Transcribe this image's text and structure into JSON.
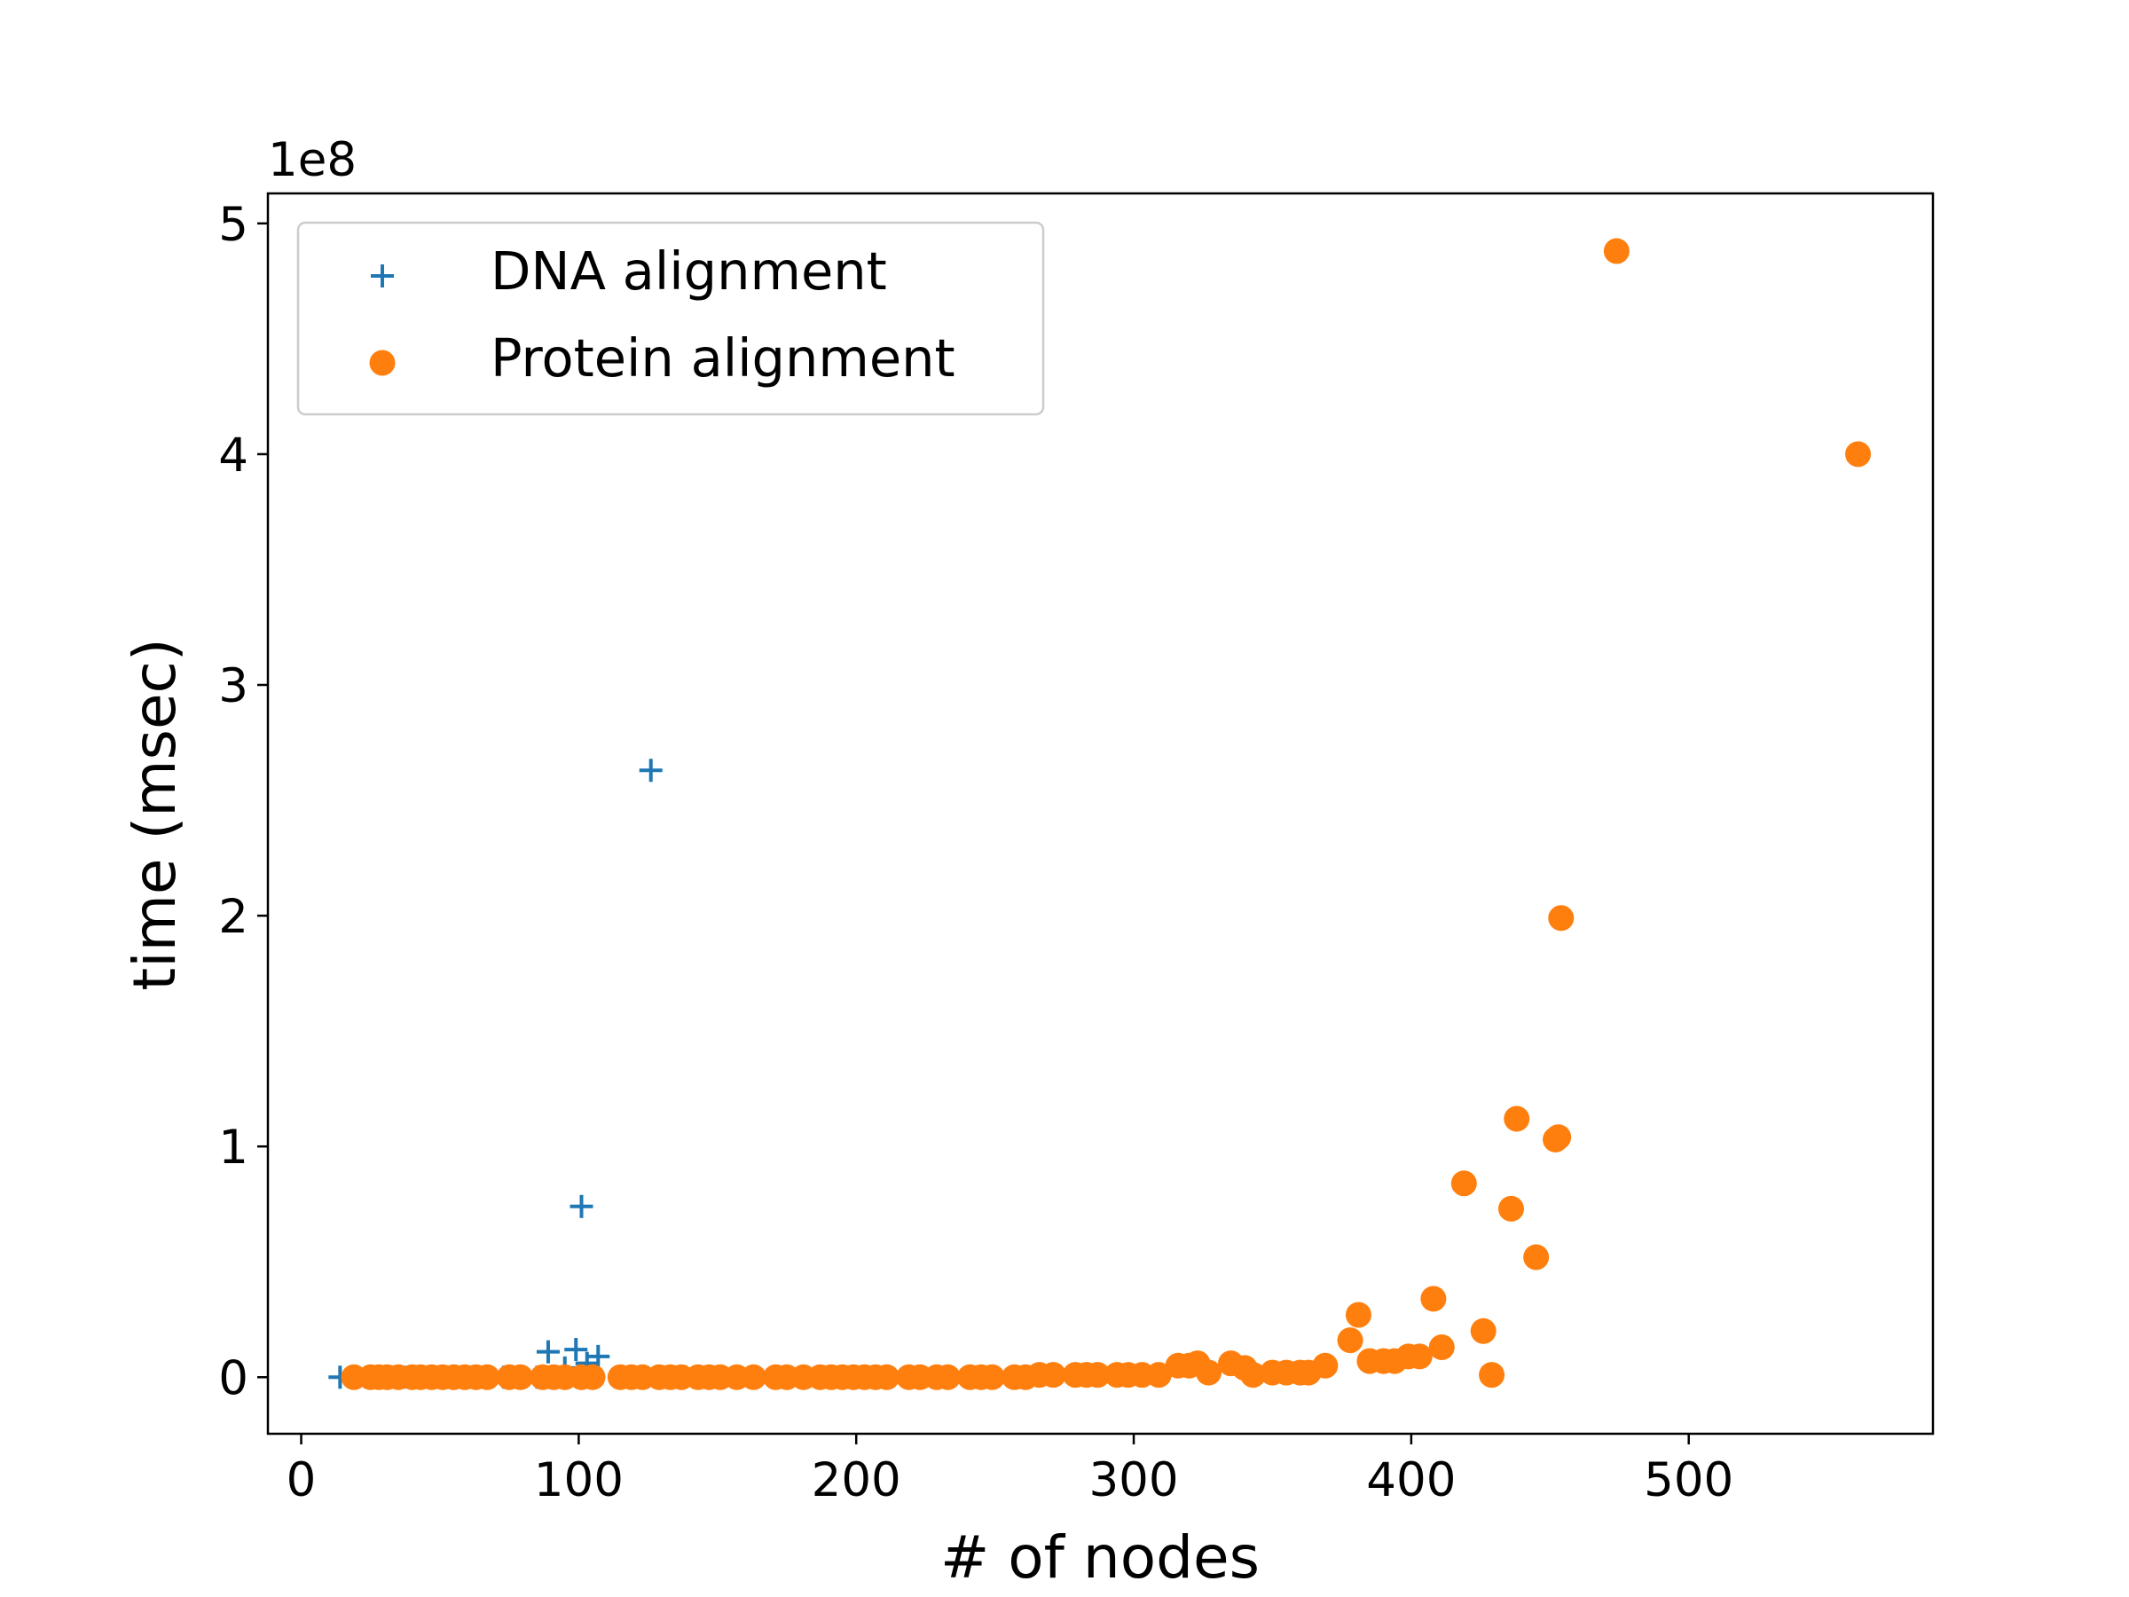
{
  "chart_data": {
    "type": "scatter",
    "title": "",
    "xlabel": "# of nodes",
    "ylabel": "time (msec)",
    "y_offset_label": "1e8",
    "y_scale_factor": 100000000,
    "xlim": [
      -12,
      588
    ],
    "ylim": [
      -0.245,
      5.13
    ],
    "x_ticks": [
      0,
      100,
      200,
      300,
      400,
      500
    ],
    "y_ticks": [
      0,
      1,
      2,
      3,
      4,
      5
    ],
    "grid": false,
    "legend_position": "top-left",
    "series": [
      {
        "name": "DNA alignment",
        "marker": "plus",
        "color": "#1f77b4",
        "points": [
          [
            14,
            0.0
          ],
          [
            20,
            0.0
          ],
          [
            26,
            0.0
          ],
          [
            31,
            0.0
          ],
          [
            37,
            0.0
          ],
          [
            43,
            0.0
          ],
          [
            49,
            0.0
          ],
          [
            55,
            0.0
          ],
          [
            61,
            0.0
          ],
          [
            67,
            0.0
          ],
          [
            73,
            0.0
          ],
          [
            79,
            0.0
          ],
          [
            85,
            0.0
          ],
          [
            89,
            0.11
          ],
          [
            95,
            0.04
          ],
          [
            99,
            0.12
          ],
          [
            101,
            0.74
          ],
          [
            103,
            0.06
          ],
          [
            107,
            0.09
          ],
          [
            126,
            2.63
          ]
        ]
      },
      {
        "name": "Protein alignment",
        "marker": "circle",
        "color": "#ff7f0e",
        "points": [
          [
            19,
            0.0
          ],
          [
            25,
            0.0
          ],
          [
            28,
            0.0
          ],
          [
            31,
            0.0
          ],
          [
            35,
            0.0
          ],
          [
            40,
            0.0
          ],
          [
            43,
            0.0
          ],
          [
            47,
            0.0
          ],
          [
            51,
            0.0
          ],
          [
            55,
            0.0
          ],
          [
            59,
            0.0
          ],
          [
            63,
            0.0
          ],
          [
            67,
            0.0
          ],
          [
            75,
            0.0
          ],
          [
            79,
            0.0
          ],
          [
            87,
            0.0
          ],
          [
            91,
            0.0
          ],
          [
            95,
            0.0
          ],
          [
            101,
            0.0
          ],
          [
            105,
            0.0
          ],
          [
            115,
            0.0
          ],
          [
            119,
            0.0
          ],
          [
            123,
            0.0
          ],
          [
            129,
            0.0
          ],
          [
            133,
            0.0
          ],
          [
            137,
            0.0
          ],
          [
            143,
            0.0
          ],
          [
            147,
            0.0
          ],
          [
            151,
            0.0
          ],
          [
            157,
            0.0
          ],
          [
            163,
            0.0
          ],
          [
            171,
            0.0
          ],
          [
            175,
            0.0
          ],
          [
            181,
            0.0
          ],
          [
            187,
            0.0
          ],
          [
            191,
            0.0
          ],
          [
            195,
            0.0
          ],
          [
            199,
            0.0
          ],
          [
            203,
            0.0
          ],
          [
            207,
            0.0
          ],
          [
            211,
            0.0
          ],
          [
            219,
            0.0
          ],
          [
            223,
            0.0
          ],
          [
            229,
            0.0
          ],
          [
            233,
            0.0
          ],
          [
            241,
            0.0
          ],
          [
            245,
            0.0
          ],
          [
            249,
            0.0
          ],
          [
            257,
            0.0
          ],
          [
            261,
            0.0
          ],
          [
            266,
            0.01
          ],
          [
            271,
            0.01
          ],
          [
            279,
            0.01
          ],
          [
            283,
            0.01
          ],
          [
            287,
            0.01
          ],
          [
            294,
            0.01
          ],
          [
            298,
            0.01
          ],
          [
            303,
            0.01
          ],
          [
            309,
            0.01
          ],
          [
            316,
            0.05
          ],
          [
            320,
            0.05
          ],
          [
            323,
            0.06
          ],
          [
            327,
            0.02
          ],
          [
            335,
            0.06
          ],
          [
            340,
            0.04
          ],
          [
            343,
            0.01
          ],
          [
            350,
            0.02
          ],
          [
            355,
            0.02
          ],
          [
            360,
            0.02
          ],
          [
            363,
            0.02
          ],
          [
            369,
            0.05
          ],
          [
            378,
            0.16
          ],
          [
            381,
            0.27
          ],
          [
            385,
            0.07
          ],
          [
            390,
            0.07
          ],
          [
            394,
            0.07
          ],
          [
            399,
            0.09
          ],
          [
            403,
            0.09
          ],
          [
            408,
            0.34
          ],
          [
            411,
            0.13
          ],
          [
            419,
            0.84
          ],
          [
            426,
            0.2
          ],
          [
            429,
            0.01
          ],
          [
            436,
            0.73
          ],
          [
            438,
            1.12
          ],
          [
            445,
            0.52
          ],
          [
            452,
            1.03
          ],
          [
            453,
            1.04
          ],
          [
            454,
            1.99
          ],
          [
            474,
            4.88
          ],
          [
            561,
            4.0
          ]
        ]
      }
    ]
  }
}
